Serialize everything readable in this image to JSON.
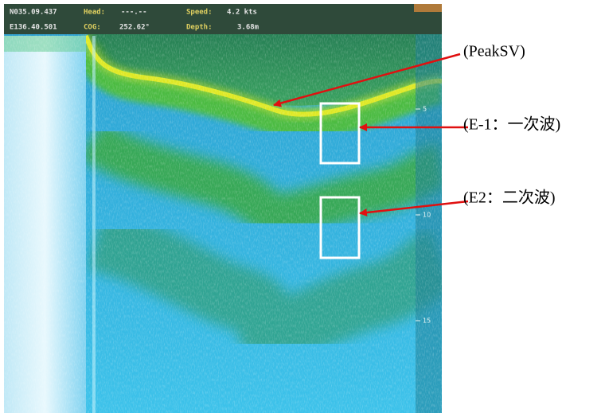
{
  "header": {
    "latitude": "N035.09.437",
    "head_label": "Head:",
    "head_value": "---.--",
    "speed_label": "Speed:",
    "speed_value": "4.2 kts",
    "longitude": "E136.40.501",
    "cog_label": "COG:",
    "cog_value": "252.62°",
    "depth_label": "Depth:",
    "depth_value": "3.68m"
  },
  "depth_scale": [
    "5",
    "10",
    "15"
  ],
  "annotations": [
    "(PeakSV)",
    "(E-1：一次波)",
    "(E2：二次波)"
  ]
}
